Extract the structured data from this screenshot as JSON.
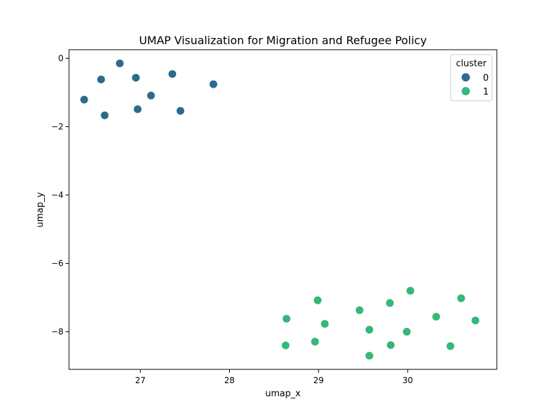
{
  "chart_data": {
    "type": "scatter",
    "title": "UMAP Visualization for Migration and Refugee Policy",
    "xlabel": "umap_x",
    "ylabel": "umap_y",
    "xlim": [
      26.2,
      31.0
    ],
    "ylim": [
      -9.1,
      0.25
    ],
    "xticks": [
      27,
      28,
      29,
      30
    ],
    "xtick_labels": [
      "27",
      "28",
      "29",
      "30"
    ],
    "yticks": [
      0,
      -2,
      -4,
      -6,
      -8
    ],
    "ytick_labels": [
      "0",
      "−2",
      "−4",
      "−6",
      "−8"
    ],
    "grid": false,
    "legend": {
      "title": "cluster",
      "position": "top-right"
    },
    "series": [
      {
        "name": "0",
        "color": "#2c6b8f",
        "points": [
          [
            26.77,
            -0.15
          ],
          [
            27.36,
            -0.46
          ],
          [
            26.56,
            -0.62
          ],
          [
            26.95,
            -0.57
          ],
          [
            27.82,
            -0.76
          ],
          [
            27.12,
            -1.09
          ],
          [
            26.37,
            -1.21
          ],
          [
            26.97,
            -1.49
          ],
          [
            27.45,
            -1.54
          ],
          [
            26.6,
            -1.67
          ]
        ]
      },
      {
        "name": "1",
        "color": "#35b779",
        "points": [
          [
            30.03,
            -6.8
          ],
          [
            30.6,
            -7.02
          ],
          [
            28.99,
            -7.08
          ],
          [
            29.8,
            -7.16
          ],
          [
            29.46,
            -7.37
          ],
          [
            30.32,
            -7.56
          ],
          [
            28.64,
            -7.62
          ],
          [
            30.76,
            -7.67
          ],
          [
            29.07,
            -7.77
          ],
          [
            29.57,
            -7.94
          ],
          [
            29.99,
            -8.0
          ],
          [
            28.96,
            -8.29
          ],
          [
            28.63,
            -8.4
          ],
          [
            29.81,
            -8.39
          ],
          [
            30.48,
            -8.42
          ],
          [
            29.57,
            -8.7
          ]
        ]
      }
    ]
  }
}
